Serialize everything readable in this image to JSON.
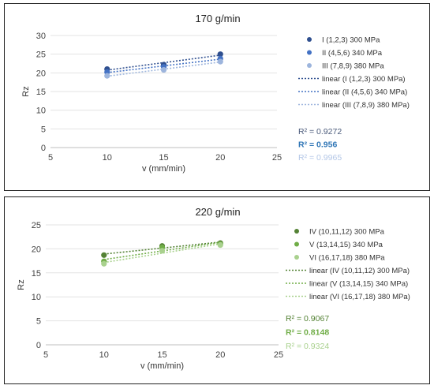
{
  "chart_data": [
    {
      "type": "scatter",
      "title": "170 g/min",
      "xlabel": "v (mm/min)",
      "ylabel": "Rz",
      "xlim": [
        5,
        25
      ],
      "ylim": [
        0,
        30
      ],
      "xticks": [
        5,
        10,
        15,
        20,
        25
      ],
      "yticks": [
        0,
        5,
        10,
        15,
        20,
        25,
        30
      ],
      "grid": "horizontal",
      "legend_position": "right",
      "series": [
        {
          "name": "I (1,2,3) 300 MPa",
          "color": "#2f4f8f",
          "x": [
            10,
            15,
            20
          ],
          "y": [
            21.0,
            22.2,
            25.0
          ],
          "trend_name": "linear   (I (1,2,3) 300 MPa)",
          "r2": "R² = 0.9272",
          "r2_color": "#4a5a7a"
        },
        {
          "name": "II (4,5,6) 340 MPa",
          "color": "#4472c4",
          "x": [
            10,
            15,
            20
          ],
          "y": [
            20.2,
            21.6,
            23.8
          ],
          "trend_name": "linear   (II (4,5,6) 340 MPa)",
          "r2": "R² = 0.956",
          "r2_color": "#2e75b6"
        },
        {
          "name": "III (7,8,9) 380 MPa",
          "color": "#9db5dd",
          "x": [
            10,
            15,
            20
          ],
          "y": [
            19.2,
            20.8,
            23.0
          ],
          "trend_name": "linear   (III (7,8,9) 380 MPa)",
          "r2": "R² = 0.9965",
          "r2_color": "#b4c7e7"
        }
      ]
    },
    {
      "type": "scatter",
      "title": "220 g/min",
      "xlabel": "v (mm/min)",
      "ylabel": "Rz",
      "xlim": [
        5,
        25
      ],
      "ylim": [
        0,
        25
      ],
      "xticks": [
        5,
        10,
        15,
        20,
        25
      ],
      "yticks": [
        0,
        5,
        10,
        15,
        20,
        25
      ],
      "grid": "horizontal",
      "legend_position": "right",
      "series": [
        {
          "name": "IV (10,11,12) 300 MPa",
          "color": "#548235",
          "x": [
            10,
            15,
            20
          ],
          "y": [
            18.7,
            20.6,
            21.2
          ],
          "trend_name": "linear   (IV (10,11,12) 300 MPa)",
          "r2": "R² = 0.9067",
          "r2_color": "#548235"
        },
        {
          "name": "V (13,14,15) 340 MPa",
          "color": "#70ad47",
          "x": [
            10,
            15,
            20
          ],
          "y": [
            17.4,
            20.3,
            21.0
          ],
          "trend_name": "linear   (V (13,14,15) 340 MPa)",
          "r2": "R² = 0.8148",
          "r2_color": "#70ad47"
        },
        {
          "name": "VI (16,17,18) 380 MPa",
          "color": "#a9d18e",
          "x": [
            10,
            15,
            20
          ],
          "y": [
            16.9,
            19.6,
            20.8
          ],
          "trend_name": "linear   (VI (16,17,18) 380 MPa)",
          "r2": "R² = 0.9324",
          "r2_color": "#a9d18e"
        }
      ]
    }
  ]
}
